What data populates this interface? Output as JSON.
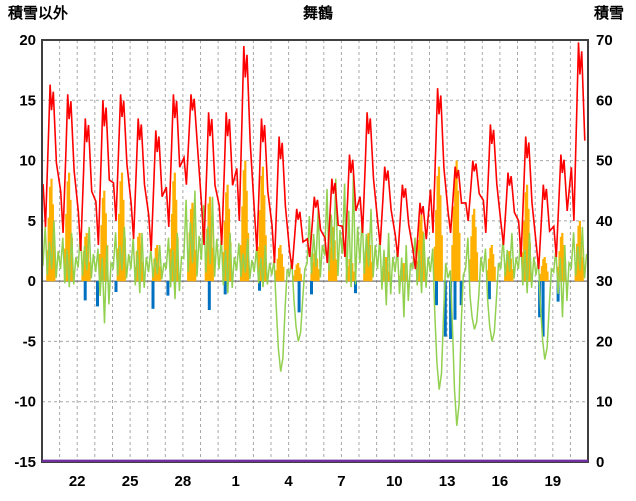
{
  "header": {
    "left_axis_title": "積雪以外",
    "station_title": "舞鶴",
    "right_axis_title": "積雪"
  },
  "chart_data": {
    "type": "combo",
    "title": "舞鶴",
    "background": "#ffffff",
    "left_axis": {
      "title": "積雪以外",
      "min": -15,
      "max": 20,
      "ticks": [
        "20",
        "15",
        "10",
        "5",
        "0",
        "-5",
        "-10",
        "-15"
      ]
    },
    "right_axis": {
      "title": "積雪",
      "min": 0,
      "max": 70,
      "ticks": [
        "70",
        "60",
        "50",
        "40",
        "30",
        "20",
        "10",
        "0"
      ]
    },
    "x_axis": {
      "labels": [
        "22",
        "25",
        "28",
        "1",
        "4",
        "7",
        "10",
        "13",
        "16",
        "19"
      ],
      "label_positions_days": [
        2,
        5,
        8,
        11,
        14,
        17,
        20,
        23,
        26,
        29
      ],
      "total_days": 31,
      "gridline_every_days": 1
    },
    "grid": {
      "color": "#a8a8a8",
      "dash": "3 3",
      "zero_line_color": "#707070",
      "frame_color": "#3f3f3f"
    },
    "series": [
      {
        "name": "red-line",
        "color": "#ff0000",
        "axis": "left",
        "style": "line",
        "daily_low_high": [
          [
            4.5,
            16.3
          ],
          [
            4,
            15.5
          ],
          [
            2.5,
            13.5
          ],
          [
            3,
            15
          ],
          [
            5,
            15.5
          ],
          [
            3.5,
            13.5
          ],
          [
            2.5,
            12.5
          ],
          [
            4.5,
            15.5
          ],
          [
            8,
            15.5
          ],
          [
            3,
            14
          ],
          [
            3,
            14
          ],
          [
            5,
            19.5
          ],
          [
            2.5,
            13.5
          ],
          [
            1.5,
            12
          ],
          [
            1,
            6
          ],
          [
            2,
            7
          ],
          [
            1.5,
            8.5
          ],
          [
            2,
            10.5
          ],
          [
            4,
            14
          ],
          [
            3,
            9.5
          ],
          [
            2,
            8
          ],
          [
            1,
            6.5
          ],
          [
            4,
            16
          ],
          [
            4,
            9.5
          ],
          [
            5,
            10
          ],
          [
            4,
            13
          ],
          [
            3,
            9
          ],
          [
            2,
            12
          ],
          [
            1,
            8
          ],
          [
            2,
            10.5
          ],
          [
            5,
            19.8
          ]
        ]
      },
      {
        "name": "green-line",
        "color": "#92d050",
        "axis": "left",
        "style": "line",
        "daily_min_max": [
          [
            0,
            5
          ],
          [
            -0.5,
            4
          ],
          [
            0,
            4.5
          ],
          [
            -3.5,
            3
          ],
          [
            0,
            4.5
          ],
          [
            -1,
            4
          ],
          [
            0,
            3
          ],
          [
            -1.5,
            4
          ],
          [
            0,
            7.5
          ],
          [
            0,
            7
          ],
          [
            -1,
            4
          ],
          [
            0,
            3.5
          ],
          [
            -0.5,
            3
          ],
          [
            -7.5,
            2
          ],
          [
            -5,
            2
          ],
          [
            0,
            6
          ],
          [
            0,
            8.5
          ],
          [
            -0.5,
            9
          ],
          [
            0,
            6
          ],
          [
            -2,
            4
          ],
          [
            -3,
            3
          ],
          [
            -1,
            4
          ],
          [
            -9,
            3
          ],
          [
            -12,
            1
          ],
          [
            -4,
            4
          ],
          [
            -5,
            3
          ],
          [
            0,
            4
          ],
          [
            -1,
            4
          ],
          [
            -6.5,
            2
          ],
          [
            -3,
            3
          ],
          [
            0,
            4.5
          ]
        ]
      },
      {
        "name": "orange-bars",
        "color": "#ffb000",
        "axis": "left",
        "style": "bars-up",
        "daily_max": [
          8.5,
          9,
          4,
          7.5,
          9,
          4,
          3,
          9,
          6.5,
          7,
          8,
          10,
          9.5,
          3,
          1.5,
          2.5,
          4.5,
          2,
          4,
          2,
          1.5,
          5.5,
          9.5,
          10,
          6,
          3,
          2.5,
          8,
          2,
          4,
          5
        ]
      },
      {
        "name": "blue-bars",
        "color": "#0070c0",
        "axis": "left",
        "style": "bars-down",
        "bars": [
          [
            2.45,
            -1.6
          ],
          [
            3.15,
            -2.1
          ],
          [
            4.2,
            -0.9
          ],
          [
            6.3,
            -2.3
          ],
          [
            7.15,
            -1.2
          ],
          [
            9.5,
            -2.4
          ],
          [
            10.4,
            -1.1
          ],
          [
            12.35,
            -0.8
          ],
          [
            14.6,
            -2.6
          ],
          [
            15.3,
            -1.1
          ],
          [
            17.8,
            -1.0
          ],
          [
            22.4,
            -2.0
          ],
          [
            22.9,
            -4.6
          ],
          [
            23.2,
            -4.8
          ],
          [
            23.45,
            -3.2
          ],
          [
            23.8,
            -2.0
          ],
          [
            25.4,
            -1.5
          ],
          [
            28.25,
            -3.0
          ],
          [
            28.45,
            -4.6
          ],
          [
            29.3,
            -1.7
          ]
        ]
      },
      {
        "name": "snow-depth-line",
        "color": "#7030a0",
        "axis": "right",
        "style": "line",
        "constant_value": 0
      }
    ]
  }
}
